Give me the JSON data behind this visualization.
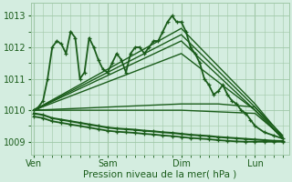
{
  "bg_color": "#d4ede0",
  "grid_color": "#a0c8a8",
  "line_color": "#1a5c1a",
  "xlabel": "Pression niveau de la mer( hPa )",
  "x_ticks": [
    0,
    48,
    96,
    144
  ],
  "x_tick_labels": [
    "Ven",
    "Sam",
    "Dim",
    "Lun"
  ],
  "ylim": [
    1008.6,
    1013.4
  ],
  "yticks": [
    1009,
    1010,
    1011,
    1012,
    1013
  ],
  "xlim": [
    -2,
    166
  ],
  "lines": [
    {
      "x": [
        0,
        3,
        6,
        9,
        12,
        15,
        18,
        21,
        24,
        27,
        30,
        33,
        36,
        39,
        42,
        45,
        48,
        51,
        54,
        57,
        60,
        63,
        66,
        69,
        72,
        75,
        78,
        81,
        84,
        87,
        90,
        93,
        96,
        99,
        102,
        105,
        108,
        111,
        114,
        117,
        120,
        123,
        126,
        129,
        132,
        135,
        138,
        141,
        144,
        150,
        156,
        162
      ],
      "y": [
        1010.0,
        1010.1,
        1010.3,
        1011.0,
        1012.0,
        1012.2,
        1012.1,
        1011.8,
        1012.5,
        1012.3,
        1011.0,
        1011.2,
        1012.3,
        1012.0,
        1011.6,
        1011.3,
        1011.2,
        1011.5,
        1011.8,
        1011.6,
        1011.2,
        1011.8,
        1012.0,
        1012.0,
        1011.8,
        1012.0,
        1012.2,
        1012.2,
        1012.5,
        1012.8,
        1013.0,
        1012.8,
        1012.8,
        1012.5,
        1012.0,
        1011.8,
        1011.5,
        1011.0,
        1010.8,
        1010.5,
        1010.6,
        1010.8,
        1010.5,
        1010.3,
        1010.2,
        1010.0,
        1009.9,
        1009.7,
        1009.5,
        1009.3,
        1009.2,
        1009.1
      ],
      "lw": 1.3,
      "marker": "+",
      "ms": 3.5,
      "mew": 0.9
    },
    {
      "x": [
        0,
        96,
        144,
        162
      ],
      "y": [
        1010.0,
        1012.6,
        1010.2,
        1009.15
      ],
      "lw": 1.0,
      "marker": null,
      "ms": 0,
      "mew": 0
    },
    {
      "x": [
        0,
        96,
        144,
        162
      ],
      "y": [
        1010.0,
        1012.4,
        1010.1,
        1009.1
      ],
      "lw": 1.0,
      "marker": null,
      "ms": 0,
      "mew": 0
    },
    {
      "x": [
        0,
        96,
        144,
        162
      ],
      "y": [
        1010.0,
        1012.2,
        1010.0,
        1009.1
      ],
      "lw": 1.0,
      "marker": null,
      "ms": 0,
      "mew": 0
    },
    {
      "x": [
        0,
        96,
        144,
        162
      ],
      "y": [
        1010.0,
        1011.8,
        1010.0,
        1009.1
      ],
      "lw": 1.0,
      "marker": null,
      "ms": 0,
      "mew": 0
    },
    {
      "x": [
        0,
        48,
        96,
        144,
        162
      ],
      "y": [
        1010.0,
        1010.0,
        1010.0,
        1009.9,
        1009.15
      ],
      "lw": 1.0,
      "marker": null,
      "ms": 0,
      "mew": 0
    },
    {
      "x": [
        0,
        48,
        96,
        120,
        144,
        162
      ],
      "y": [
        1010.0,
        1010.1,
        1010.2,
        1010.2,
        1010.1,
        1009.2
      ],
      "lw": 1.0,
      "marker": null,
      "ms": 0,
      "mew": 0
    },
    {
      "x": [
        0,
        6,
        12,
        18,
        24,
        30,
        36,
        42,
        48,
        54,
        60,
        66,
        72,
        78,
        84,
        90,
        96,
        102,
        108,
        114,
        120,
        126,
        132,
        138,
        144,
        150,
        156,
        162
      ],
      "y": [
        1009.9,
        1009.85,
        1009.75,
        1009.7,
        1009.65,
        1009.6,
        1009.55,
        1009.5,
        1009.45,
        1009.42,
        1009.4,
        1009.38,
        1009.35,
        1009.33,
        1009.3,
        1009.28,
        1009.25,
        1009.22,
        1009.2,
        1009.18,
        1009.15,
        1009.13,
        1009.11,
        1009.09,
        1009.07,
        1009.05,
        1009.03,
        1009.02
      ],
      "lw": 1.5,
      "marker": "+",
      "ms": 3.5,
      "mew": 0.9
    },
    {
      "x": [
        0,
        6,
        12,
        18,
        24,
        30,
        36,
        42,
        48,
        54,
        60,
        66,
        72,
        78,
        84,
        90,
        96,
        102,
        108,
        114,
        120,
        126,
        132,
        138,
        144,
        150,
        156,
        162
      ],
      "y": [
        1009.8,
        1009.75,
        1009.65,
        1009.6,
        1009.55,
        1009.5,
        1009.45,
        1009.4,
        1009.35,
        1009.32,
        1009.3,
        1009.28,
        1009.25,
        1009.23,
        1009.2,
        1009.18,
        1009.15,
        1009.12,
        1009.1,
        1009.08,
        1009.05,
        1009.03,
        1009.01,
        1009.0,
        1009.0,
        1009.0,
        1009.0,
        1009.0
      ],
      "lw": 1.3,
      "marker": "+",
      "ms": 3.5,
      "mew": 0.9
    }
  ]
}
